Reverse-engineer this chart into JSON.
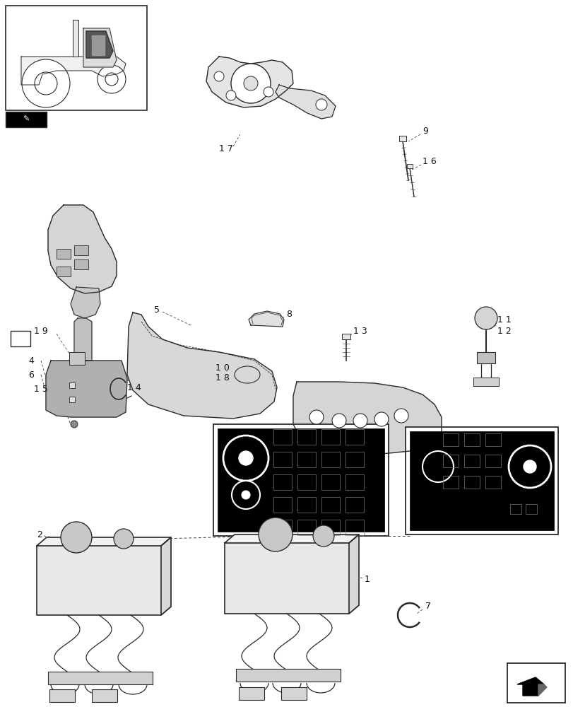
{
  "bg_color": "#ffffff",
  "line_color": "#2a2a2a",
  "figsize": [
    8.12,
    10.0
  ],
  "dpi": 100,
  "lw_main": 0.9,
  "lw_thin": 0.5,
  "lw_label": 0.6
}
